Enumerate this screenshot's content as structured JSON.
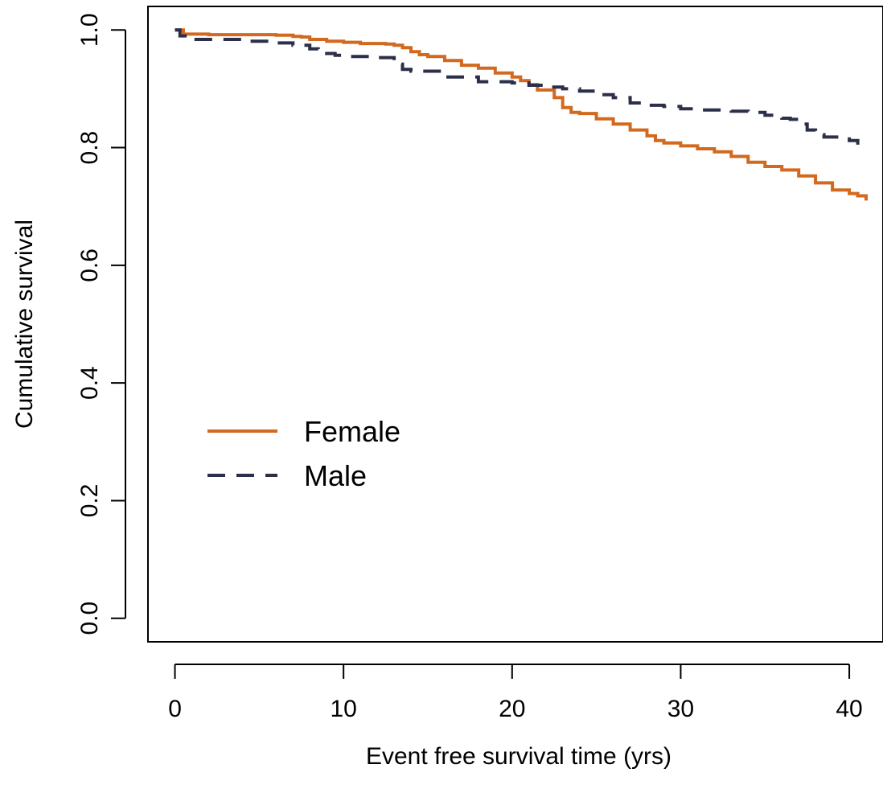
{
  "chart_data": {
    "type": "line",
    "step": true,
    "title": "",
    "xlabel": "Event free survival time (yrs)",
    "ylabel": "Cumulative survival",
    "xlim": [
      -1.6,
      42.0
    ],
    "ylim": [
      -0.04,
      1.04
    ],
    "xticks": [
      0,
      10,
      20,
      30,
      40
    ],
    "yticks": [
      0.0,
      0.2,
      0.4,
      0.6,
      0.8,
      1.0
    ],
    "xtick_labels": [
      "0",
      "10",
      "20",
      "30",
      "40"
    ],
    "ytick_labels": [
      "0.0",
      "0.2",
      "0.4",
      "0.6",
      "0.8",
      "1.0"
    ],
    "grid": false,
    "legend_position": "left",
    "series": [
      {
        "name": "Female",
        "color": "#d2691e",
        "line_style": "solid",
        "x": [
          0,
          0.5,
          2,
          6,
          7,
          7.5,
          8,
          9,
          10,
          11,
          12,
          12.5,
          13,
          13.5,
          14,
          14.5,
          15,
          16,
          17,
          18,
          19,
          20,
          20.5,
          21,
          21.5,
          22,
          22.5,
          23,
          23.5,
          24,
          25,
          26,
          27,
          28,
          28.5,
          29,
          30,
          31,
          32,
          33,
          34,
          35,
          36,
          37,
          38,
          39,
          40,
          40.5,
          41
        ],
        "y": [
          1.0,
          0.993,
          0.992,
          0.991,
          0.989,
          0.988,
          0.984,
          0.981,
          0.979,
          0.977,
          0.977,
          0.976,
          0.974,
          0.97,
          0.963,
          0.958,
          0.955,
          0.948,
          0.94,
          0.935,
          0.927,
          0.92,
          0.914,
          0.907,
          0.898,
          0.898,
          0.885,
          0.868,
          0.86,
          0.858,
          0.849,
          0.84,
          0.83,
          0.82,
          0.812,
          0.808,
          0.803,
          0.798,
          0.793,
          0.785,
          0.775,
          0.768,
          0.762,
          0.752,
          0.74,
          0.728,
          0.722,
          0.718,
          0.71
        ]
      },
      {
        "name": "Male",
        "color": "#2b2f4a",
        "line_style": "dashed",
        "x": [
          0,
          0.3,
          1,
          4,
          6,
          7,
          8,
          8.5,
          9,
          9.5,
          10,
          12,
          13,
          13.5,
          14,
          16,
          18,
          20,
          21,
          22,
          23,
          24,
          25,
          26,
          27,
          28,
          29,
          30,
          31,
          33,
          34,
          35,
          36,
          36.5,
          37,
          37.5,
          38,
          38.5,
          40,
          40.5
        ],
        "y": [
          1.0,
          0.99,
          0.984,
          0.981,
          0.978,
          0.974,
          0.968,
          0.964,
          0.96,
          0.957,
          0.955,
          0.953,
          0.942,
          0.933,
          0.93,
          0.92,
          0.912,
          0.91,
          0.906,
          0.903,
          0.9,
          0.896,
          0.89,
          0.885,
          0.876,
          0.872,
          0.87,
          0.866,
          0.864,
          0.862,
          0.86,
          0.855,
          0.85,
          0.848,
          0.84,
          0.83,
          0.822,
          0.818,
          0.812,
          0.805
        ]
      }
    ]
  }
}
